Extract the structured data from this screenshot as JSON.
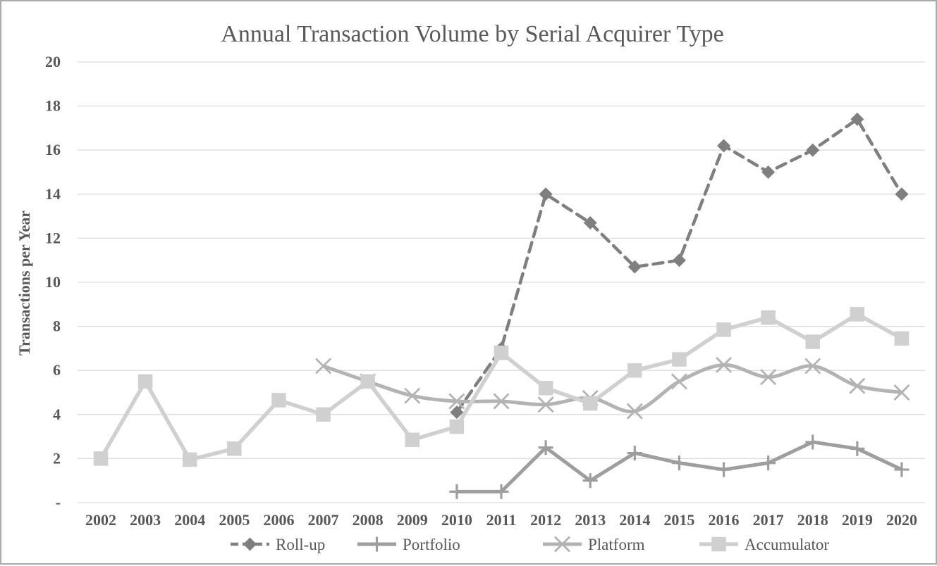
{
  "figure": {
    "background": "#ffffff",
    "border_color": "#ababab"
  },
  "chart_data": {
    "type": "line",
    "title": "Annual Transaction Volume by Serial Acquirer Type",
    "xlabel": "",
    "ylabel": "Transactions per Year",
    "ylim": [
      0,
      20
    ],
    "yticks": [
      0,
      2,
      4,
      6,
      8,
      10,
      12,
      14,
      16,
      18,
      20
    ],
    "ytick_labels": [
      "-",
      "2",
      "4",
      "6",
      "8",
      "10",
      "12",
      "14",
      "16",
      "18",
      "20"
    ],
    "grid": true,
    "gridline_color": "#dcdcdc",
    "text_color": "#595959",
    "legend_position": "bottom",
    "categories": [
      "2002",
      "2003",
      "2004",
      "2005",
      "2006",
      "2007",
      "2008",
      "2009",
      "2010",
      "2011",
      "2012",
      "2013",
      "2014",
      "2015",
      "2016",
      "2017",
      "2018",
      "2019",
      "2020"
    ],
    "series": [
      {
        "name": "Roll-up",
        "color": "#7f7f7f",
        "line_style": "dashed",
        "line_smooth": false,
        "marker": "diamond",
        "values": [
          null,
          null,
          null,
          null,
          null,
          null,
          null,
          null,
          4.1,
          7.0,
          14.0,
          12.7,
          10.7,
          11.0,
          16.2,
          15.0,
          16.0,
          17.4,
          14.0
        ]
      },
      {
        "name": "Portfolio",
        "color": "#9e9e9e",
        "line_style": "solid",
        "line_smooth": false,
        "marker": "plus",
        "values": [
          null,
          null,
          null,
          null,
          null,
          null,
          null,
          null,
          0.5,
          0.5,
          2.5,
          1.0,
          2.25,
          1.8,
          1.5,
          1.8,
          2.75,
          2.45,
          1.5
        ]
      },
      {
        "name": "Platform",
        "color": "#b3b3b3",
        "line_style": "solid",
        "line_smooth": true,
        "marker": "x",
        "values": [
          null,
          null,
          null,
          null,
          null,
          6.2,
          5.5,
          4.85,
          4.6,
          4.6,
          4.45,
          4.75,
          4.15,
          5.5,
          6.25,
          5.7,
          6.2,
          5.3,
          5.0
        ]
      },
      {
        "name": "Accumulator",
        "color": "#d0d0d0",
        "line_style": "solid",
        "line_smooth": false,
        "marker": "square",
        "values": [
          2.0,
          5.5,
          1.95,
          2.45,
          4.65,
          4.0,
          5.5,
          2.85,
          3.45,
          6.8,
          5.2,
          4.5,
          6.0,
          6.5,
          7.85,
          8.4,
          7.3,
          8.55,
          7.45
        ]
      }
    ]
  }
}
